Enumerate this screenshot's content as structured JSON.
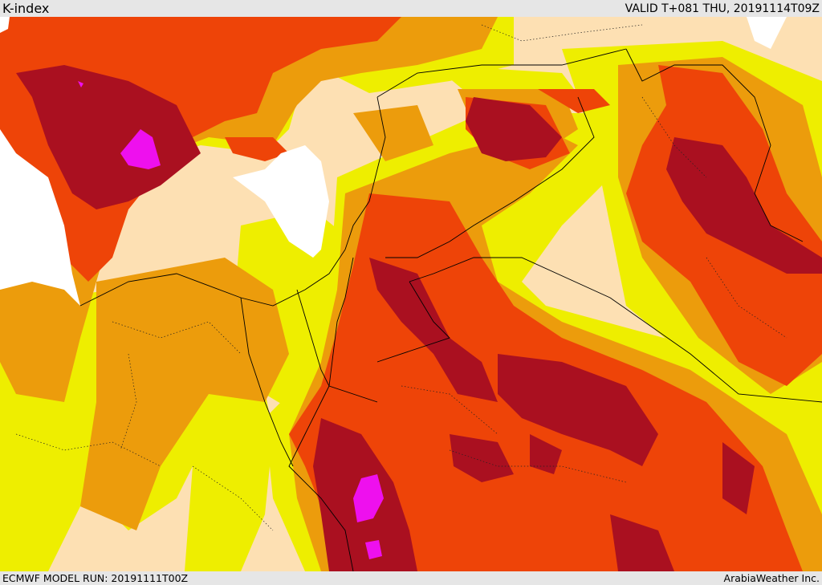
{
  "header": {
    "title": "K-index",
    "valid": "VALID T+081 THU, 20191114T09Z"
  },
  "footer": {
    "model_run": "ECMWF MODEL RUN: 20191111T00Z",
    "credit": "ArabiaWeather Inc."
  },
  "colors": {
    "background": "#fde0b3",
    "level1": "#eeee00",
    "level2": "#ec9c0c",
    "level3": "#ee4408",
    "level4": "#aa1020",
    "level5": "#ee10ee",
    "sea": "#ffffff",
    "bar": "#e6e6e6"
  }
}
